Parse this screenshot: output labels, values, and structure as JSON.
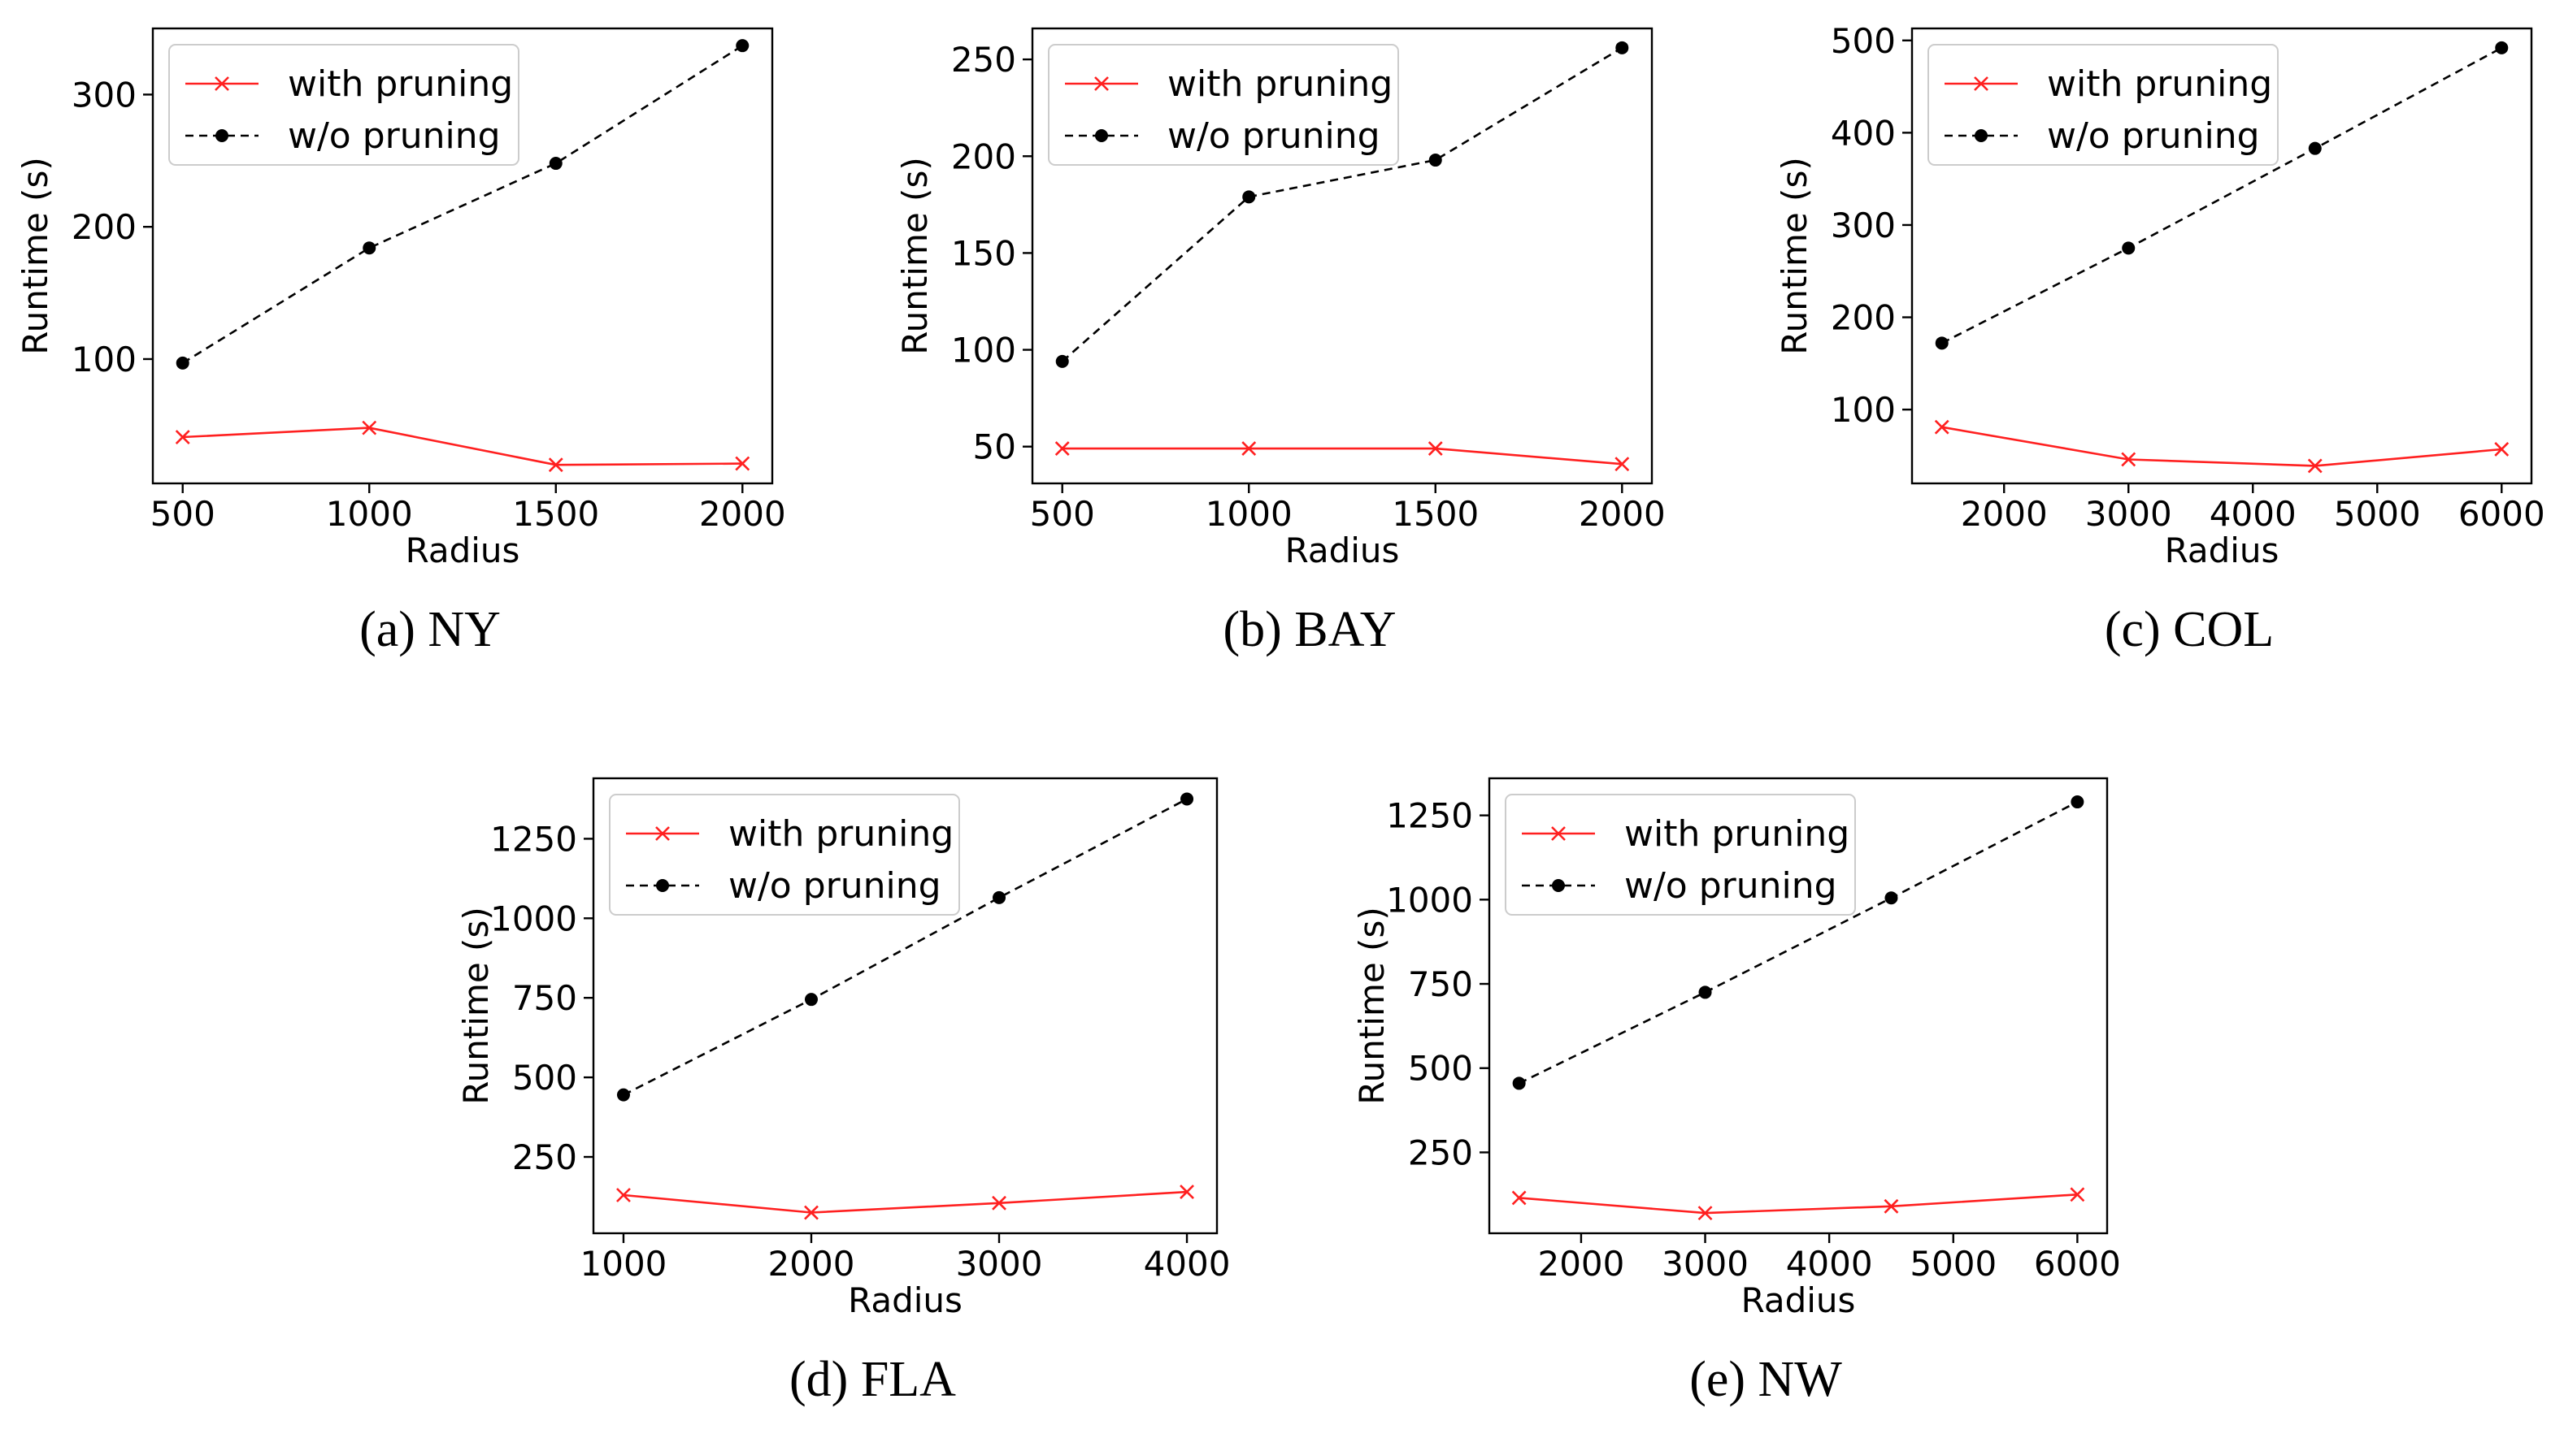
{
  "legend": {
    "with_pruning": "with pruning",
    "without_pruning": "w/o pruning"
  },
  "colors": {
    "with_pruning": "#ff2020",
    "without_pruning": "#000000"
  },
  "chart_data": [
    {
      "type": "line",
      "caption": "(a) NY",
      "xlabel": "Radius",
      "ylabel": "Runtime (s)",
      "x": [
        500,
        1000,
        1500,
        2000
      ],
      "xticks": [
        500,
        1000,
        1500,
        2000
      ],
      "yticks": [
        100,
        200,
        300
      ],
      "xlim": [
        420,
        2080
      ],
      "ylim": [
        6,
        350
      ],
      "legend_position": "top-left",
      "series": [
        {
          "name": "with pruning",
          "values": [
            41,
            48,
            20,
            21
          ]
        },
        {
          "name": "w/o pruning",
          "values": [
            97,
            184,
            248,
            337
          ]
        }
      ]
    },
    {
      "type": "line",
      "caption": "(b) BAY",
      "xlabel": "Radius",
      "ylabel": "Runtime (s)",
      "x": [
        500,
        1000,
        1500,
        2000
      ],
      "xticks": [
        500,
        1000,
        1500,
        2000
      ],
      "yticks": [
        50,
        100,
        150,
        200,
        250
      ],
      "xlim": [
        420,
        2080
      ],
      "ylim": [
        31,
        266
      ],
      "legend_position": "top-left",
      "series": [
        {
          "name": "with pruning",
          "values": [
            49,
            49,
            49,
            41
          ]
        },
        {
          "name": "w/o pruning",
          "values": [
            94,
            179,
            198,
            256
          ]
        }
      ]
    },
    {
      "type": "line",
      "caption": "(c) COL",
      "xlabel": "Radius",
      "ylabel": "Runtime (s)",
      "x": [
        1500,
        3000,
        4500,
        6000
      ],
      "xticks": [
        2000,
        3000,
        4000,
        5000,
        6000
      ],
      "yticks": [
        100,
        200,
        300,
        400,
        500
      ],
      "xlim": [
        1260,
        6240
      ],
      "ylim": [
        20,
        513
      ],
      "legend_position": "top-left",
      "series": [
        {
          "name": "with pruning",
          "values": [
            81,
            46,
            39,
            57
          ]
        },
        {
          "name": "w/o pruning",
          "values": [
            172,
            275,
            383,
            492
          ]
        }
      ]
    },
    {
      "type": "line",
      "caption": "(d) FLA",
      "xlabel": "Radius",
      "ylabel": "Runtime (s)",
      "x": [
        1000,
        2000,
        3000,
        4000
      ],
      "xticks": [
        1000,
        2000,
        3000,
        4000
      ],
      "yticks": [
        250,
        500,
        750,
        1000,
        1250
      ],
      "xlim": [
        840,
        4160
      ],
      "ylim": [
        10,
        1440
      ],
      "legend_position": "top-left",
      "series": [
        {
          "name": "with pruning",
          "values": [
            130,
            75,
            105,
            140
          ]
        },
        {
          "name": "w/o pruning",
          "values": [
            445,
            745,
            1065,
            1375
          ]
        }
      ]
    },
    {
      "type": "line",
      "caption": "(e) NW",
      "xlabel": "Radius",
      "ylabel": "Runtime (s)",
      "x": [
        1500,
        3000,
        4500,
        6000
      ],
      "xticks": [
        2000,
        3000,
        4000,
        5000,
        6000
      ],
      "yticks": [
        250,
        500,
        750,
        1000,
        1250
      ],
      "xlim": [
        1260,
        6240
      ],
      "ylim": [
        10,
        1360
      ],
      "legend_position": "top-left",
      "series": [
        {
          "name": "with pruning",
          "values": [
            115,
            70,
            90,
            125
          ]
        },
        {
          "name": "w/o pruning",
          "values": [
            455,
            725,
            1005,
            1290
          ]
        }
      ]
    }
  ]
}
